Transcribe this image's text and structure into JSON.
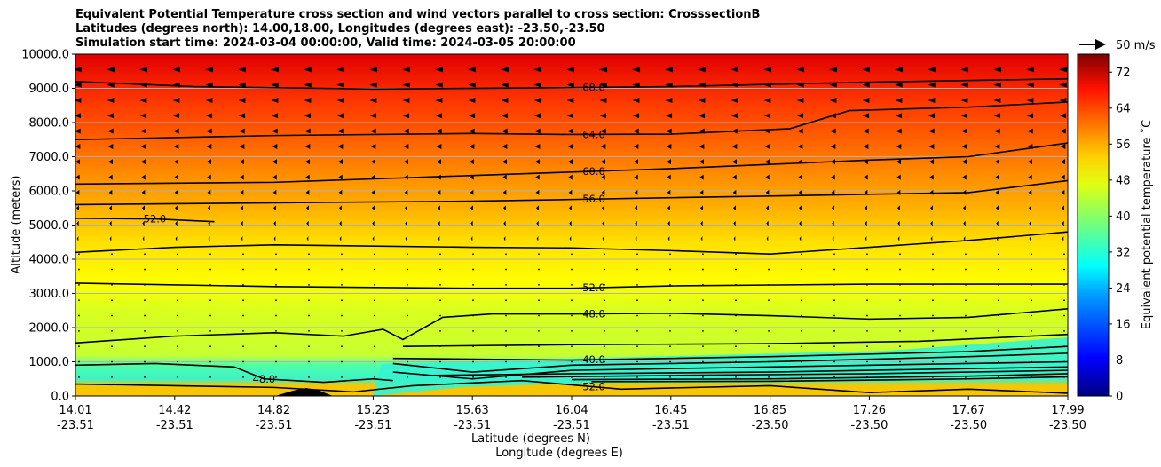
{
  "title_lines": [
    "Equivalent Potential Temperature cross section and wind vectors parallel to cross section: CrosssectionB",
    "Latitudes (degrees north): 14.00,18.00, Longitudes (degrees east): -23.50,-23.50",
    "Simulation start time: 2024-03-04 00:00:00, Valid time: 2024-03-05 20:00:00"
  ],
  "quiver_key": "50 m/s",
  "chart_data": {
    "type": "contourf",
    "ylabel": "Altitude (meters)",
    "xlabel_lat": "Latitude (degrees N)",
    "xlabel_lon": "Longitude (degrees E)",
    "colorbar_label": "Equivalent potential temperature ˚C",
    "ylim": [
      0,
      10000
    ],
    "yticks": [
      "0.0",
      "1000.0",
      "2000.0",
      "3000.0",
      "4000.0",
      "5000.0",
      "6000.0",
      "7000.0",
      "8000.0",
      "9000.0",
      "10000.0"
    ],
    "xticks": [
      {
        "lat": "14.01",
        "lon": "-23.51"
      },
      {
        "lat": "14.42",
        "lon": "-23.51"
      },
      {
        "lat": "14.82",
        "lon": "-23.51"
      },
      {
        "lat": "15.23",
        "lon": "-23.51"
      },
      {
        "lat": "15.63",
        "lon": "-23.51"
      },
      {
        "lat": "16.04",
        "lon": "-23.51"
      },
      {
        "lat": "16.45",
        "lon": "-23.51"
      },
      {
        "lat": "16.85",
        "lon": "-23.50"
      },
      {
        "lat": "17.26",
        "lon": "-23.50"
      },
      {
        "lat": "17.67",
        "lon": "-23.50"
      },
      {
        "lat": "17.99",
        "lon": "-23.50"
      }
    ],
    "colorbar_ticks": [
      "0",
      "8",
      "16",
      "24",
      "32",
      "40",
      "48",
      "56",
      "64",
      "72"
    ],
    "colorbar_range": [
      0,
      76
    ],
    "contours": [
      {
        "value": 68.0,
        "label": "68.0",
        "points": [
          [
            0,
            9200
          ],
          [
            1.2,
            9050
          ],
          [
            3,
            8980
          ],
          [
            5,
            9020
          ],
          [
            6,
            9050
          ],
          [
            8,
            9180
          ],
          [
            10,
            9280
          ]
        ]
      },
      {
        "value": 64.0,
        "label": "64.0",
        "points": [
          [
            0,
            7500
          ],
          [
            2,
            7620
          ],
          [
            4,
            7680
          ],
          [
            5,
            7650
          ],
          [
            6,
            7660
          ],
          [
            7.2,
            7820
          ],
          [
            7.8,
            8350
          ],
          [
            9,
            8450
          ],
          [
            10,
            8600
          ]
        ]
      },
      {
        "value": 60.0,
        "label": "60.0",
        "points": [
          [
            0,
            6200
          ],
          [
            2,
            6250
          ],
          [
            4,
            6450
          ],
          [
            5,
            6550
          ],
          [
            6,
            6650
          ],
          [
            8,
            6900
          ],
          [
            9,
            7000
          ],
          [
            10,
            7400
          ]
        ]
      },
      {
        "value": 56.0,
        "label": "56.0",
        "points": [
          [
            0,
            5600
          ],
          [
            2,
            5650
          ],
          [
            4,
            5700
          ],
          [
            5,
            5750
          ],
          [
            6,
            5800
          ],
          [
            8,
            5900
          ],
          [
            9,
            5950
          ],
          [
            10,
            6300
          ]
        ]
      },
      {
        "value": 52.0,
        "label": "52.0",
        "points": [
          [
            0,
            5200
          ],
          [
            0.8,
            5180
          ],
          [
            1.4,
            5100
          ]
        ]
      },
      {
        "value": 52.0,
        "label": "",
        "points": [
          [
            0,
            4200
          ],
          [
            1,
            4350
          ],
          [
            2,
            4420
          ],
          [
            4,
            4350
          ],
          [
            5,
            4330
          ],
          [
            6,
            4250
          ],
          [
            7,
            4150
          ],
          [
            8,
            4350
          ],
          [
            9,
            4550
          ],
          [
            10,
            4800
          ]
        ]
      },
      {
        "value": 52.0,
        "label": "52.0",
        "points": [
          [
            0,
            3300
          ],
          [
            2,
            3200
          ],
          [
            4,
            3150
          ],
          [
            5,
            3150
          ],
          [
            6,
            3220
          ],
          [
            8,
            3270
          ],
          [
            10,
            3270
          ]
        ]
      },
      {
        "value": 48.0,
        "label": "48.0",
        "points": [
          [
            0,
            1550
          ],
          [
            1,
            1750
          ],
          [
            2,
            1850
          ],
          [
            2.7,
            1750
          ],
          [
            3.1,
            1950
          ],
          [
            3.3,
            1650
          ],
          [
            3.7,
            2300
          ],
          [
            4.2,
            2400
          ],
          [
            5,
            2400
          ],
          [
            6,
            2420
          ],
          [
            7,
            2350
          ],
          [
            8,
            2250
          ],
          [
            9,
            2300
          ],
          [
            10,
            2550
          ]
        ]
      },
      {
        "value": 44.0,
        "label": "",
        "points": [
          [
            3.3,
            1450
          ],
          [
            5,
            1500
          ],
          [
            7,
            1530
          ],
          [
            8.5,
            1600
          ],
          [
            10,
            1800
          ]
        ]
      },
      {
        "value": 40.0,
        "label": "40.0",
        "points": [
          [
            3.2,
            1100
          ],
          [
            5,
            1050
          ],
          [
            7,
            1150
          ],
          [
            9,
            1300
          ],
          [
            10,
            1450
          ]
        ]
      },
      {
        "value": 36.0,
        "label": "",
        "points": [
          [
            3.2,
            950
          ],
          [
            4,
            700
          ],
          [
            5,
            900
          ],
          [
            7,
            1000
          ],
          [
            9,
            1150
          ],
          [
            10,
            1250
          ]
        ]
      },
      {
        "value": 32.0,
        "label": "",
        "points": [
          [
            3.2,
            700
          ],
          [
            4,
            500
          ],
          [
            5,
            750
          ],
          [
            7,
            850
          ],
          [
            9,
            950
          ],
          [
            10,
            1000
          ]
        ]
      },
      {
        "value": 28.0,
        "label": "",
        "points": [
          [
            3.5,
            600
          ],
          [
            5,
            650
          ],
          [
            7,
            700
          ],
          [
            9,
            800
          ],
          [
            10,
            850
          ]
        ]
      },
      {
        "value": 24.0,
        "label": "",
        "points": [
          [
            4.5,
            550
          ],
          [
            6,
            600
          ],
          [
            8,
            650
          ],
          [
            10,
            750
          ]
        ]
      },
      {
        "value": 20.0,
        "label": "",
        "points": [
          [
            5,
            480
          ],
          [
            7,
            500
          ],
          [
            9,
            580
          ],
          [
            10,
            650
          ]
        ]
      },
      {
        "value": 16.0,
        "label": "",
        "points": [
          [
            5.2,
            420
          ],
          [
            7,
            430
          ],
          [
            9,
            500
          ],
          [
            10,
            560
          ]
        ]
      },
      {
        "value": 48.0,
        "label": "48.0",
        "points": [
          [
            0,
            900
          ],
          [
            0.8,
            950
          ],
          [
            1.6,
            850
          ],
          [
            1.9,
            500
          ],
          [
            2.5,
            400
          ],
          [
            3,
            500
          ],
          [
            3.2,
            450
          ]
        ]
      },
      {
        "value": 52.0,
        "label": "52.0",
        "points": [
          [
            0,
            350
          ],
          [
            1,
            300
          ],
          [
            2,
            250
          ],
          [
            2.8,
            120
          ],
          [
            3.4,
            300
          ],
          [
            4.5,
            450
          ],
          [
            5.5,
            200
          ],
          [
            7,
            300
          ],
          [
            8,
            100
          ],
          [
            9,
            200
          ],
          [
            10,
            80
          ]
        ]
      }
    ]
  }
}
